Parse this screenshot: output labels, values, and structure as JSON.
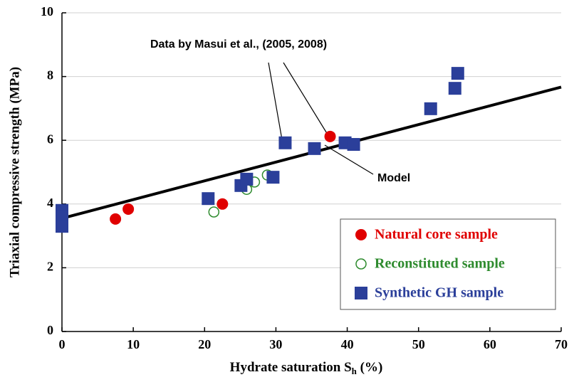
{
  "chart_data": {
    "type": "scatter",
    "xlabel": {
      "text": "Hydrate saturation  S",
      "sub": "h",
      "suffix": " (%)"
    },
    "ylabel": "Triaxial compressive strength (MPa)",
    "xlim": [
      0,
      70
    ],
    "xticks": [
      0,
      10,
      20,
      30,
      40,
      50,
      60,
      70
    ],
    "ylim": [
      0,
      10
    ],
    "yticks": [
      0,
      2,
      4,
      6,
      8,
      10
    ],
    "grid": true,
    "legend": "lower right",
    "series": [
      {
        "name": "Natural core sample",
        "color": "#e00000",
        "marker": "circle",
        "x": [
          7.5,
          9.3,
          22.5,
          37.6
        ],
        "values": [
          3.53,
          3.84,
          4.0,
          6.12
        ]
      },
      {
        "name": "Reconstituted sample",
        "color": "#2e8b2e",
        "marker": "open-circle",
        "x": [
          0,
          21.3,
          25.9,
          27.0,
          28.8
        ],
        "values": [
          3.65,
          3.75,
          4.46,
          4.69,
          4.91
        ]
      },
      {
        "name": "Synthetic GH sample",
        "color": "#2b3f9a",
        "marker": "square",
        "x": [
          0,
          0,
          0,
          20.5,
          25.1,
          25.9,
          29.6,
          31.3,
          35.4,
          39.7,
          40.9,
          51.7,
          55.1,
          55.5
        ],
        "values": [
          3.8,
          3.6,
          3.3,
          4.17,
          4.58,
          4.78,
          4.84,
          5.92,
          5.74,
          5.92,
          5.87,
          6.99,
          7.63,
          8.1
        ]
      }
    ],
    "line": {
      "name": "Model",
      "color": "#000000",
      "x": [
        0,
        70
      ],
      "values": [
        3.55,
        7.67
      ]
    },
    "annotation": "Data by Masui et al., (2005, 2008)"
  }
}
